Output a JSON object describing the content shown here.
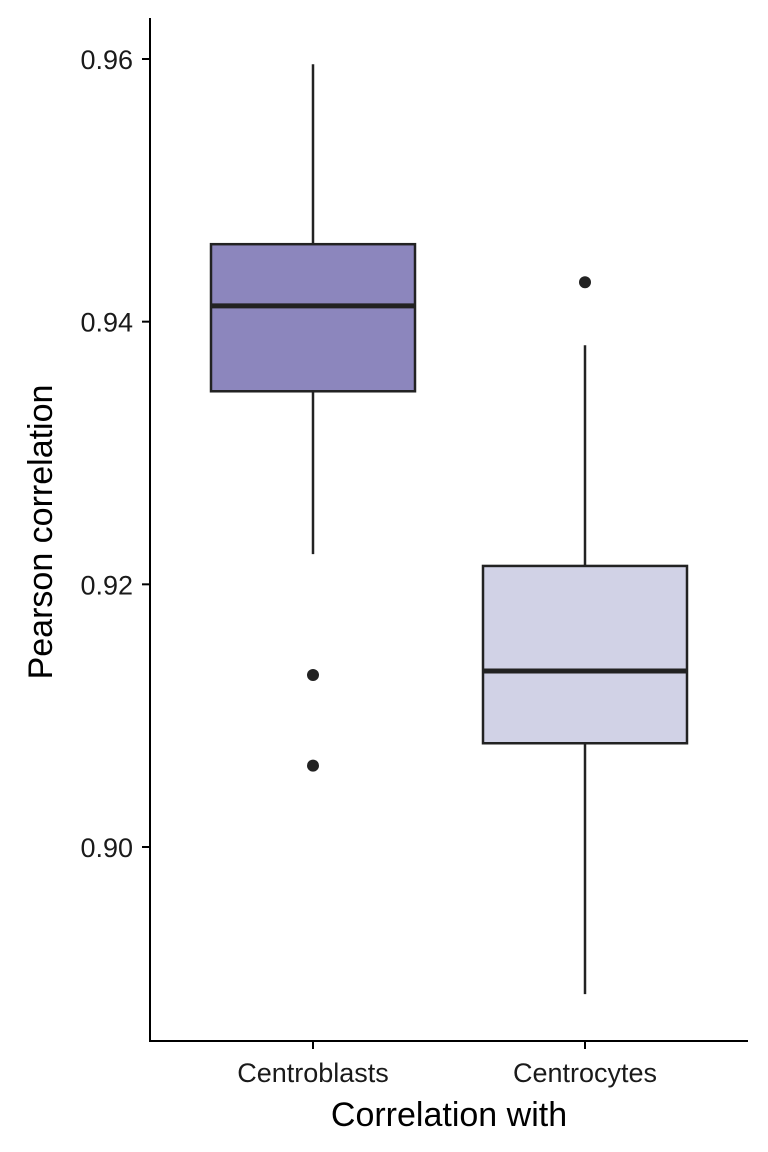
{
  "chart_data": {
    "type": "box",
    "title": "",
    "xlabel": "Correlation with",
    "ylabel": "Pearson correlation",
    "ylim": [
      0.885,
      0.963
    ],
    "yticks": [
      0.9,
      0.92,
      0.94,
      0.96
    ],
    "ytick_labels": [
      "0.90",
      "0.92",
      "0.94",
      "0.96"
    ],
    "grid": false,
    "legend": "none",
    "categories": [
      "Centroblasts",
      "Centrocytes"
    ],
    "boxes": [
      {
        "category": "Centroblasts",
        "whisker_low": 0.9223,
        "q1": 0.9347,
        "median": 0.9412,
        "q3": 0.9459,
        "whisker_high": 0.9596,
        "outliers": [
          0.9131,
          0.9062
        ],
        "fill": "#8c86bd"
      },
      {
        "category": "Centrocytes",
        "whisker_low": 0.8888,
        "q1": 0.9079,
        "median": 0.9134,
        "q3": 0.9214,
        "whisker_high": 0.9382,
        "outliers": [
          0.943
        ],
        "fill": "#d1d2e6"
      }
    ]
  }
}
